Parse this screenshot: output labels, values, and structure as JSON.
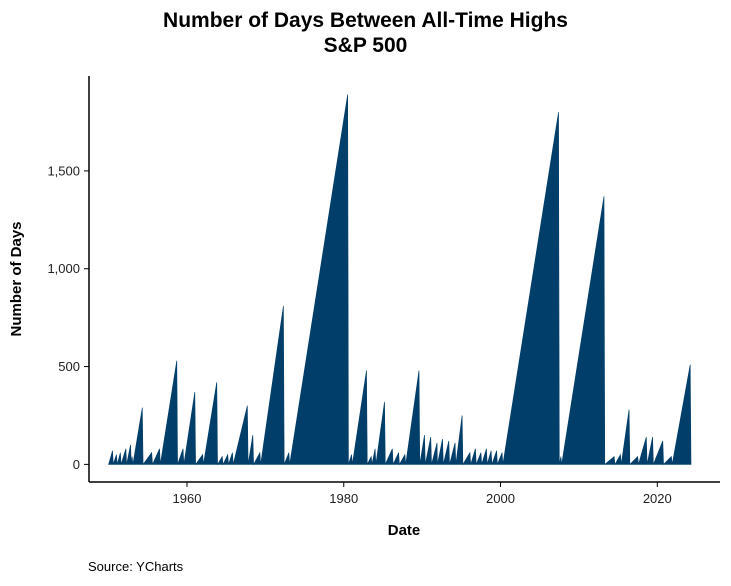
{
  "chart_data": {
    "type": "area",
    "title": "Number of Days Between All-Time Highs",
    "subtitle": "S&P 500",
    "xlabel": "Date",
    "ylabel": "Number of Days",
    "source": "Source: YCharts",
    "color": "#023E6A",
    "xlim": [
      1947.5,
      2028
    ],
    "ylim": [
      -90,
      1985
    ],
    "x_ticks": [
      1960,
      1980,
      2000,
      2020
    ],
    "x_tick_labels": [
      "1960",
      "1980",
      "2000",
      "2020"
    ],
    "y_ticks": [
      0,
      500,
      1000,
      1500
    ],
    "y_tick_labels": [
      "0",
      "500",
      "1,000",
      "1,500"
    ],
    "grid": false,
    "legend": "none",
    "series": [
      {
        "values": [
          [
            1950.0,
            0
          ],
          [
            1950.5,
            70
          ],
          [
            1950.6,
            0
          ],
          [
            1951.0,
            50
          ],
          [
            1951.1,
            0
          ],
          [
            1951.5,
            60
          ],
          [
            1951.6,
            0
          ],
          [
            1952.2,
            80
          ],
          [
            1952.3,
            0
          ],
          [
            1952.8,
            100
          ],
          [
            1952.9,
            0
          ],
          [
            1953.0,
            40
          ],
          [
            1953.1,
            0
          ],
          [
            1954.3,
            290
          ],
          [
            1954.4,
            0
          ],
          [
            1955.5,
            60
          ],
          [
            1955.6,
            0
          ],
          [
            1956.5,
            80
          ],
          [
            1956.6,
            0
          ],
          [
            1958.7,
            530
          ],
          [
            1958.8,
            0
          ],
          [
            1959.5,
            80
          ],
          [
            1959.6,
            0
          ],
          [
            1961.0,
            370
          ],
          [
            1961.1,
            0
          ],
          [
            1962.0,
            50
          ],
          [
            1962.1,
            0
          ],
          [
            1963.8,
            420
          ],
          [
            1963.9,
            0
          ],
          [
            1964.5,
            40
          ],
          [
            1964.6,
            0
          ],
          [
            1965.2,
            50
          ],
          [
            1965.3,
            0
          ],
          [
            1965.8,
            60
          ],
          [
            1965.9,
            0
          ],
          [
            1967.7,
            300
          ],
          [
            1967.8,
            0
          ],
          [
            1968.4,
            150
          ],
          [
            1968.5,
            0
          ],
          [
            1969.3,
            60
          ],
          [
            1969.4,
            0
          ],
          [
            1972.3,
            810
          ],
          [
            1972.4,
            0
          ],
          [
            1973.0,
            60
          ],
          [
            1973.1,
            0
          ],
          [
            1980.5,
            1890
          ],
          [
            1980.6,
            0
          ],
          [
            1981.0,
            50
          ],
          [
            1981.1,
            0
          ],
          [
            1982.9,
            480
          ],
          [
            1983.0,
            0
          ],
          [
            1983.5,
            40
          ],
          [
            1983.6,
            0
          ],
          [
            1984.0,
            80
          ],
          [
            1984.1,
            0
          ],
          [
            1985.2,
            320
          ],
          [
            1985.3,
            0
          ],
          [
            1986.2,
            80
          ],
          [
            1986.3,
            0
          ],
          [
            1987.0,
            60
          ],
          [
            1987.1,
            0
          ],
          [
            1987.8,
            50
          ],
          [
            1987.9,
            0
          ],
          [
            1989.6,
            480
          ],
          [
            1989.7,
            0
          ],
          [
            1990.3,
            150
          ],
          [
            1990.4,
            0
          ],
          [
            1991.1,
            140
          ],
          [
            1991.2,
            0
          ],
          [
            1991.9,
            110
          ],
          [
            1991.95,
            0
          ],
          [
            1992.6,
            130
          ],
          [
            1992.7,
            0
          ],
          [
            1993.4,
            120
          ],
          [
            1993.5,
            0
          ],
          [
            1994.2,
            110
          ],
          [
            1994.3,
            0
          ],
          [
            1995.1,
            250
          ],
          [
            1995.2,
            0
          ],
          [
            1996.1,
            60
          ],
          [
            1996.2,
            0
          ],
          [
            1996.8,
            80
          ],
          [
            1996.9,
            0
          ],
          [
            1997.5,
            60
          ],
          [
            1997.6,
            0
          ],
          [
            1998.2,
            80
          ],
          [
            1998.3,
            0
          ],
          [
            1998.8,
            70
          ],
          [
            1998.9,
            0
          ],
          [
            1999.5,
            70
          ],
          [
            1999.6,
            0
          ],
          [
            2000.2,
            60
          ],
          [
            2000.3,
            0
          ],
          [
            2007.4,
            1800
          ],
          [
            2007.5,
            0
          ],
          [
            2007.7,
            40
          ],
          [
            2007.8,
            0
          ],
          [
            2013.2,
            1370
          ],
          [
            2013.3,
            0
          ],
          [
            2014.5,
            40
          ],
          [
            2014.6,
            0
          ],
          [
            2015.3,
            50
          ],
          [
            2015.4,
            0
          ],
          [
            2016.4,
            280
          ],
          [
            2016.5,
            0
          ],
          [
            2017.5,
            40
          ],
          [
            2017.6,
            0
          ],
          [
            2018.6,
            140
          ],
          [
            2018.7,
            0
          ],
          [
            2019.4,
            140
          ],
          [
            2019.5,
            0
          ],
          [
            2020.7,
            120
          ],
          [
            2020.8,
            0
          ],
          [
            2021.8,
            40
          ],
          [
            2021.9,
            0
          ],
          [
            2024.2,
            510
          ],
          [
            2024.3,
            0
          ]
        ]
      }
    ]
  }
}
